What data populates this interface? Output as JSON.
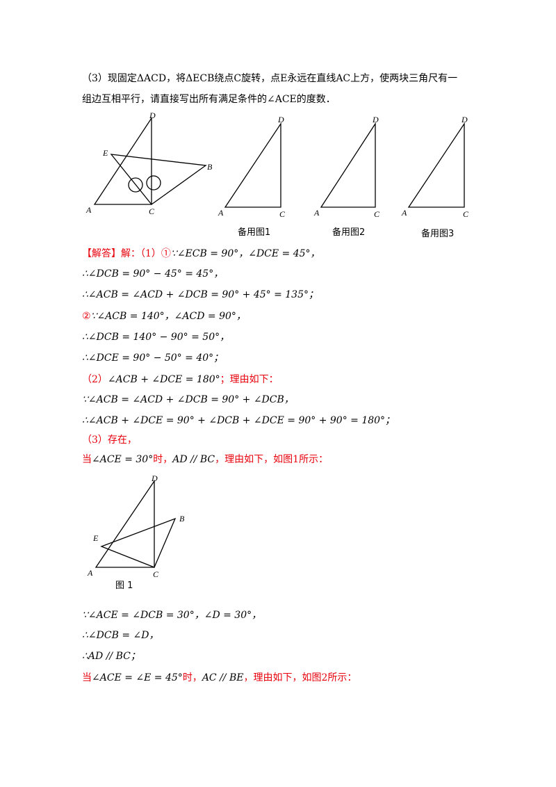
{
  "problem": {
    "line1": "（3）现固定ΔACD，将ΔECB绕点C旋转，点E永远在直线AC上方，使两块三角尺有一",
    "line2": "组边互相平行，请直接写出所有满足条件的∠ACE的度数．"
  },
  "figures_top": {
    "main_labels": {
      "D": "D",
      "E": "E",
      "B": "B",
      "A": "A",
      "C": "C"
    },
    "backup1_caption": "备用图1",
    "backup2_caption": "备用图2",
    "backup3_caption": "备用图3"
  },
  "solution": {
    "header": "【解答】",
    "l1_prefix": "解：（1）①",
    "l1_math": "∵∠ECB = 90°，∠DCE = 45°，",
    "l2": "∴∠DCB = 90° − 45° = 45°，",
    "l3": "∴∠ACB = ∠ACD + ∠DCB = 90° + 45° = 135°；",
    "l4_prefix": "②",
    "l4_math": "∵∠ACB = 140°，∠ACD = 90°，",
    "l5": "∴∠DCB = 140° − 90° = 50°，",
    "l6": "∴∠DCE = 90° − 50° = 40°；",
    "l7_prefix": "（2）",
    "l7_math": "∠ACB + ∠DCE = 180°",
    "l7_suffix": "；理由如下：",
    "l8": "∵∠ACB = ∠ACD + ∠DCB = 90° + ∠DCB，",
    "l9": "∴∠ACB + ∠DCE = 90° + ∠DCB + ∠DCE = 90° + 90° = 180°；",
    "l10": "（3）存在，",
    "l11_prefix": "当",
    "l11_math": "∠ACE = 30°",
    "l11_mid": "时，",
    "l11_math2": "AD // BC",
    "l11_suffix": "，理由如下，如图1所示：",
    "fig1_caption": "图 1",
    "l12": "∵∠ACE = ∠DCB = 30°，∠D = 30°，",
    "l13": "∴∠DCB = ∠D，",
    "l14": "∴AD // BC；",
    "l15_prefix": "当",
    "l15_math": "∠ACE = ∠E = 45°",
    "l15_mid": "时，",
    "l15_math2": "AC // BE",
    "l15_suffix": "，理由如下，如图2所示："
  }
}
